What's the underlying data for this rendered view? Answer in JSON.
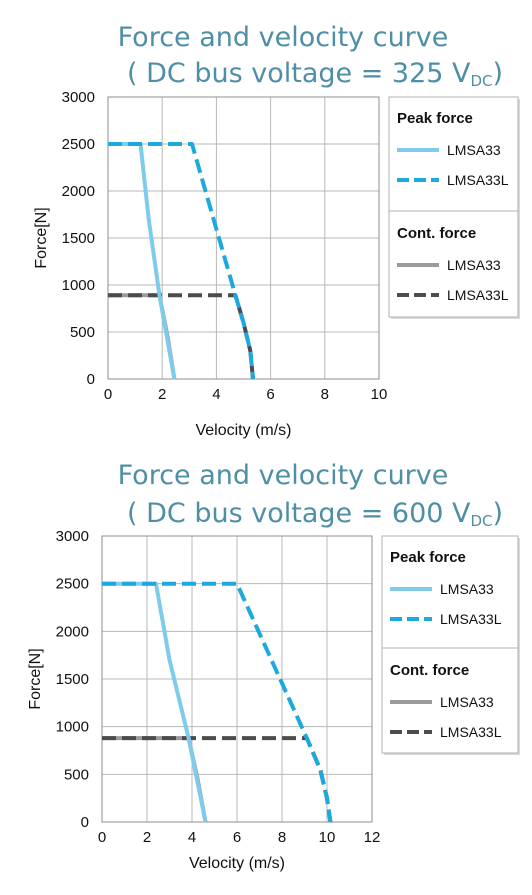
{
  "chart_data": [
    {
      "type": "line",
      "title": "Force and velocity curve",
      "subtitle_prefix": "( DC bus voltage = 325 V",
      "subtitle_sub": "DC",
      "subtitle_suffix": ")",
      "xlabel": "Velocity (m/s)",
      "ylabel": "Force[N]",
      "xlim": [
        0,
        10
      ],
      "ylim": [
        0,
        3000
      ],
      "xticks": [
        "0",
        "2",
        "4",
        "6",
        "8",
        "10"
      ],
      "yticks": [
        "0",
        "500",
        "1000",
        "1500",
        "2000",
        "2500",
        "3000"
      ],
      "grid": true,
      "legend_position": "right",
      "legend": {
        "group1_title": "Peak force",
        "group2_title": "Cont. force"
      },
      "series": [
        {
          "name": "LMSA33",
          "group": "Peak force",
          "color": "#7ecbec",
          "dash": "solid",
          "x": [
            0,
            1.2,
            1.5,
            1.9,
            2.45
          ],
          "y": [
            2500,
            2500,
            1700,
            890,
            0
          ]
        },
        {
          "name": "LMSA33L",
          "group": "Peak force",
          "color": "#1ea8e0",
          "dash": "dashed",
          "x": [
            0,
            3.1,
            4.7,
            5.0,
            5.25,
            5.35
          ],
          "y": [
            2500,
            2500,
            890,
            600,
            300,
            0
          ]
        },
        {
          "name": "LMSA33",
          "group": "Cont. force",
          "color": "#9a9b9d",
          "dash": "solid",
          "x": [
            0,
            1.9,
            2.2,
            2.45
          ],
          "y": [
            890,
            890,
            450,
            0
          ]
        },
        {
          "name": "LMSA33L",
          "group": "Cont. force",
          "color": "#4b4c4e",
          "dash": "dashed",
          "x": [
            0,
            4.7,
            5.0,
            5.25,
            5.35
          ],
          "y": [
            890,
            890,
            600,
            300,
            0
          ]
        }
      ]
    },
    {
      "type": "line",
      "title": "Force and velocity curve",
      "subtitle_prefix": "( DC bus voltage = 600 V",
      "subtitle_sub": "DC",
      "subtitle_suffix": ")",
      "xlabel": "Velocity (m/s)",
      "ylabel": "Force[N]",
      "xlim": [
        0,
        12
      ],
      "ylim": [
        0,
        3000
      ],
      "xticks": [
        "0",
        "2",
        "4",
        "6",
        "8",
        "10",
        "12"
      ],
      "yticks": [
        "0",
        "500",
        "1000",
        "1500",
        "2000",
        "2500",
        "3000"
      ],
      "grid": true,
      "legend_position": "right",
      "legend": {
        "group1_title": "Peak force",
        "group2_title": "Cont. force"
      },
      "series": [
        {
          "name": "LMSA33",
          "group": "Peak force",
          "color": "#7ecbec",
          "dash": "solid",
          "x": [
            0,
            2.4,
            3.0,
            3.85,
            4.6
          ],
          "y": [
            2500,
            2500,
            1700,
            880,
            0
          ]
        },
        {
          "name": "LMSA33L",
          "group": "Peak force",
          "color": "#1ea8e0",
          "dash": "dashed",
          "x": [
            0,
            6.0,
            9.1,
            9.7,
            10.0,
            10.15
          ],
          "y": [
            2500,
            2500,
            880,
            550,
            250,
            0
          ]
        },
        {
          "name": "LMSA33",
          "group": "Cont. force",
          "color": "#9a9b9d",
          "dash": "solid",
          "x": [
            0,
            3.85,
            4.25,
            4.6
          ],
          "y": [
            880,
            880,
            450,
            0
          ]
        },
        {
          "name": "LMSA33L",
          "group": "Cont. force",
          "color": "#4b4c4e",
          "dash": "dashed",
          "x": [
            0,
            9.1,
            9.7,
            10.0,
            10.15
          ],
          "y": [
            880,
            880,
            550,
            250,
            0
          ]
        }
      ]
    }
  ]
}
